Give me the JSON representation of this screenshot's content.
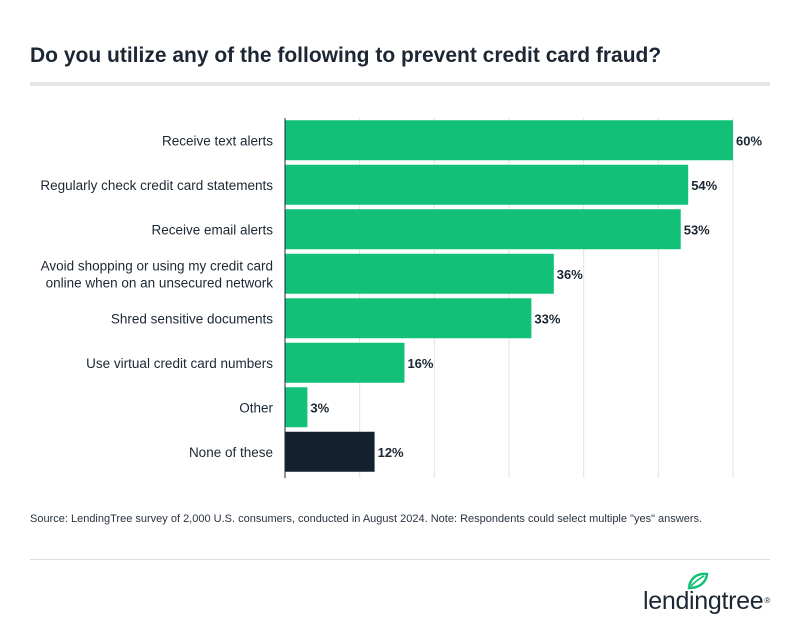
{
  "title": "Do you utilize any of the following to prevent credit card fraud?",
  "chart_data": {
    "type": "bar",
    "orientation": "horizontal",
    "categories": [
      [
        "Receive text alerts"
      ],
      [
        "Regularly check credit card statements"
      ],
      [
        "Receive email alerts"
      ],
      [
        "Avoid shopping or using my credit card",
        "online when on an unsecured network"
      ],
      [
        "Shred sensitive documents"
      ],
      [
        "Use virtual credit card numbers"
      ],
      [
        "Other"
      ],
      [
        "None of these"
      ]
    ],
    "values": [
      60,
      54,
      53,
      36,
      33,
      16,
      3,
      12
    ],
    "value_labels": [
      "60%",
      "54%",
      "53%",
      "36%",
      "33%",
      "16%",
      "3%",
      "12%"
    ],
    "bar_colors": [
      "#12c177",
      "#12c177",
      "#12c177",
      "#12c177",
      "#12c177",
      "#12c177",
      "#12c177",
      "#142131"
    ],
    "xlim": [
      0,
      60
    ],
    "grid": true,
    "grid_step": 10,
    "gridline_color": "#e3e3e3"
  },
  "source": "Source: LendingTree survey of 2,000 U.S. consumers, conducted in August 2024. Note: Respondents could select multiple \"yes\" answers.",
  "logo": {
    "text": "lendingtree",
    "registered": "®",
    "leaf_color": "#12c177"
  }
}
